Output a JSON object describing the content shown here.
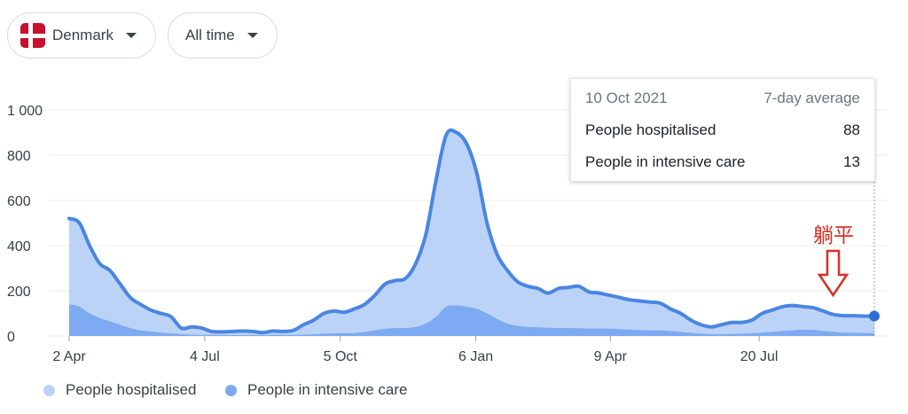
{
  "filters": {
    "country": "Denmark",
    "range": "All time"
  },
  "tooltip": {
    "date": "10 Oct 2021",
    "mode": "7-day average",
    "rows": [
      {
        "label": "People hospitalised",
        "value": "88"
      },
      {
        "label": "People in intensive care",
        "value": "13"
      }
    ]
  },
  "annotation": {
    "text": "躺平",
    "color": "#d93025"
  },
  "colors": {
    "hospitalised_fill": "#bcd3f8",
    "hospitalised_line": "#4a86e0",
    "icu_fill": "#7daaf2",
    "grid": "#ececec"
  },
  "chart_data": {
    "type": "area",
    "y_ticks": [
      "0",
      "200",
      "400",
      "600",
      "800",
      "1 000"
    ],
    "ylim": [
      0,
      1000
    ],
    "x_ticks": [
      {
        "label": "2 Apr",
        "week": 0
      },
      {
        "label": "4 Jul",
        "week": 13.3
      },
      {
        "label": "5 Oct",
        "week": 26.6
      },
      {
        "label": "6 Jan",
        "week": 39.9
      },
      {
        "label": "9 Apr",
        "week": 53.1
      },
      {
        "label": "20 Jul",
        "week": 67.7
      }
    ],
    "grid": true,
    "legend_position": "bottom-left",
    "series": [
      {
        "name": "People hospitalised",
        "x": [
          0,
          1,
          2,
          3,
          4,
          5,
          6,
          7,
          8,
          9,
          10,
          11,
          12,
          13,
          14,
          15,
          16,
          17,
          18,
          19,
          20,
          21,
          22,
          23,
          24,
          25,
          26,
          27,
          28,
          29,
          30,
          31,
          32,
          33,
          34,
          35,
          36,
          37,
          38,
          39,
          40,
          41,
          42,
          43,
          44,
          45,
          46,
          47,
          48,
          49,
          50,
          51,
          52,
          53,
          54,
          55,
          56,
          57,
          58,
          59,
          60,
          61,
          62,
          63,
          64,
          65,
          66,
          67,
          68,
          69,
          70,
          71,
          72,
          73,
          74,
          75,
          76,
          77,
          78,
          79
        ],
        "values": [
          520,
          500,
          400,
          320,
          290,
          230,
          170,
          140,
          115,
          100,
          85,
          35,
          40,
          35,
          20,
          18,
          20,
          22,
          20,
          15,
          22,
          20,
          25,
          50,
          70,
          100,
          110,
          105,
          120,
          140,
          180,
          230,
          245,
          255,
          320,
          450,
          690,
          890,
          900,
          850,
          720,
          500,
          360,
          290,
          240,
          220,
          210,
          190,
          210,
          215,
          220,
          195,
          190,
          180,
          170,
          160,
          155,
          150,
          145,
          120,
          100,
          70,
          50,
          40,
          50,
          60,
          60,
          70,
          100,
          115,
          130,
          135,
          130,
          125,
          110,
          95,
          90,
          90,
          88,
          88
        ]
      },
      {
        "name": "People in intensive care",
        "x": [
          0,
          1,
          2,
          3,
          4,
          5,
          6,
          7,
          8,
          9,
          10,
          11,
          12,
          13,
          14,
          15,
          16,
          17,
          18,
          19,
          20,
          21,
          22,
          23,
          24,
          25,
          26,
          27,
          28,
          29,
          30,
          31,
          32,
          33,
          34,
          35,
          36,
          37,
          38,
          39,
          40,
          41,
          42,
          43,
          44,
          45,
          46,
          47,
          48,
          49,
          50,
          51,
          52,
          53,
          54,
          55,
          56,
          57,
          58,
          59,
          60,
          61,
          62,
          63,
          64,
          65,
          66,
          67,
          68,
          69,
          70,
          71,
          72,
          73,
          74,
          75,
          76,
          77,
          78,
          79
        ],
        "values": [
          140,
          130,
          100,
          80,
          65,
          50,
          35,
          25,
          20,
          15,
          12,
          8,
          6,
          5,
          5,
          4,
          4,
          4,
          4,
          4,
          5,
          5,
          5,
          6,
          8,
          10,
          12,
          12,
          13,
          18,
          25,
          32,
          35,
          35,
          40,
          55,
          85,
          130,
          135,
          130,
          120,
          100,
          75,
          55,
          45,
          40,
          38,
          36,
          35,
          35,
          34,
          33,
          33,
          32,
          30,
          28,
          26,
          25,
          25,
          22,
          18,
          14,
          10,
          8,
          8,
          9,
          10,
          12,
          15,
          18,
          22,
          25,
          28,
          27,
          22,
          18,
          15,
          14,
          13,
          13
        ]
      }
    ]
  }
}
